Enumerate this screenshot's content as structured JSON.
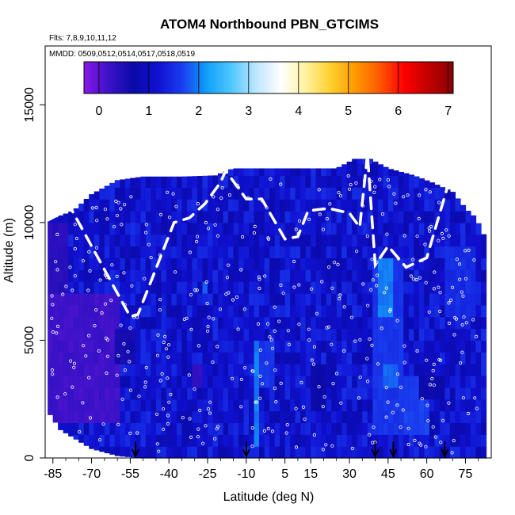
{
  "chart_data": {
    "type": "heatmap",
    "title": "ATOM4 Northbound PBN_GTCIMS",
    "subtitle_flights": "Flts: 7,8,9,10,11,12",
    "subtitle_dates": "MMDD: 0509,0512,0514,0517,0518,0519",
    "xlabel": "Latitude (deg N)",
    "ylabel": "Altitude (m)",
    "xlim": [
      -88,
      85
    ],
    "ylim": [
      0,
      17500
    ],
    "xticks": [
      -85,
      -70,
      -55,
      -40,
      -25,
      -10,
      5,
      15,
      30,
      45,
      60,
      75
    ],
    "yticks": [
      0,
      5000,
      10000,
      15000
    ],
    "colorbar": {
      "min": -0.3,
      "max": 7.1,
      "ticks": [
        0,
        1,
        2,
        3,
        4,
        5,
        6,
        7
      ],
      "colors": [
        "#8a18e6",
        "#3b12c8",
        "#0a0aa8",
        "#1010d0",
        "#1a3ef0",
        "#10a0f8",
        "#50c8ff",
        "#bfe6ff",
        "#ffffff",
        "#fff2a0",
        "#ffd030",
        "#ff9a00",
        "#ff5a00",
        "#ff0000",
        "#c00000",
        "#8a0000"
      ]
    },
    "profile_top_altitude": [
      [
        -87,
        10100
      ],
      [
        -77,
        10500
      ],
      [
        -70,
        11200
      ],
      [
        -60,
        11800
      ],
      [
        -50,
        11950
      ],
      [
        -35,
        11950
      ],
      [
        -22,
        12000
      ],
      [
        -15,
        12300
      ],
      [
        0,
        12300
      ],
      [
        15,
        12300
      ],
      [
        25,
        12300
      ],
      [
        32,
        12700
      ],
      [
        38,
        12700
      ],
      [
        45,
        12300
      ],
      [
        55,
        12000
      ],
      [
        62,
        11700
      ],
      [
        70,
        11300
      ],
      [
        75,
        10600
      ],
      [
        79,
        10200
      ],
      [
        82,
        9500
      ]
    ],
    "profile_bottom_altitude": [
      [
        -87,
        2000
      ],
      [
        -82,
        1200
      ],
      [
        -76,
        800
      ],
      [
        -70,
        400
      ],
      [
        -60,
        100
      ],
      [
        -50,
        0
      ],
      [
        80,
        0
      ]
    ],
    "profile_base_value": 1.0,
    "anomalies": [
      {
        "lat_range": [
          -87,
          -60
        ],
        "alt_range": [
          1200,
          7000
        ],
        "value": 0.1
      },
      {
        "lat_range": [
          -87,
          -80
        ],
        "alt_range": [
          7000,
          10000
        ],
        "value": 0.3
      },
      {
        "lat_range": [
          -62,
          -53
        ],
        "alt_range": [
          4000,
          5500
        ],
        "value": 0.5
      },
      {
        "lat_range": [
          -32,
          -28
        ],
        "alt_range": [
          3000,
          4000
        ],
        "value": 0.2
      },
      {
        "lat_range": [
          -28,
          -25
        ],
        "alt_range": [
          7000,
          7500
        ],
        "value": 1.7
      },
      {
        "lat_range": [
          -8,
          -5
        ],
        "alt_range": [
          500,
          5000
        ],
        "value": 1.9
      },
      {
        "lat_range": [
          -5,
          0
        ],
        "alt_range": [
          3000,
          5000
        ],
        "value": 1.5
      },
      {
        "lat_range": [
          15,
          20
        ],
        "alt_range": [
          2000,
          4000
        ],
        "value": 0.6
      },
      {
        "lat_range": [
          38,
          50
        ],
        "alt_range": [
          1000,
          8500
        ],
        "value": 1.5
      },
      {
        "lat_range": [
          41,
          46
        ],
        "alt_range": [
          6000,
          8500
        ],
        "value": 1.9
      },
      {
        "lat_range": [
          42,
          49
        ],
        "alt_range": [
          2800,
          3800
        ],
        "value": 1.8
      },
      {
        "lat_range": [
          50,
          60
        ],
        "alt_range": [
          1000,
          3500
        ],
        "value": 1.6
      },
      {
        "lat_range": [
          57,
          66
        ],
        "alt_range": [
          2500,
          3500
        ],
        "value": 0.6
      },
      {
        "lat_range": [
          67,
          78
        ],
        "alt_range": [
          6000,
          9000
        ],
        "value": 1.4
      }
    ],
    "flight_track": [
      [
        -87,
        10100
      ],
      [
        -80,
        10500
      ],
      [
        -78,
        10600
      ],
      [
        -55,
        6000
      ],
      [
        -52,
        6100
      ],
      [
        -38,
        10000
      ],
      [
        -32,
        10200
      ],
      [
        -26,
        10800
      ],
      [
        -20,
        11700
      ],
      [
        -18,
        12200
      ],
      [
        -10,
        11000
      ],
      [
        -4,
        11000
      ],
      [
        5,
        9300
      ],
      [
        10,
        9400
      ],
      [
        14,
        10500
      ],
      [
        22,
        10600
      ],
      [
        30,
        10400
      ],
      [
        34,
        9800
      ],
      [
        37,
        12900
      ],
      [
        40,
        8200
      ],
      [
        45,
        9000
      ],
      [
        52,
        8100
      ],
      [
        60,
        8500
      ],
      [
        68,
        11500
      ],
      [
        74,
        11600
      ],
      [
        82,
        11700
      ]
    ],
    "profile_arrows_lat": [
      -53,
      -10,
      40,
      47,
      67
    ]
  }
}
